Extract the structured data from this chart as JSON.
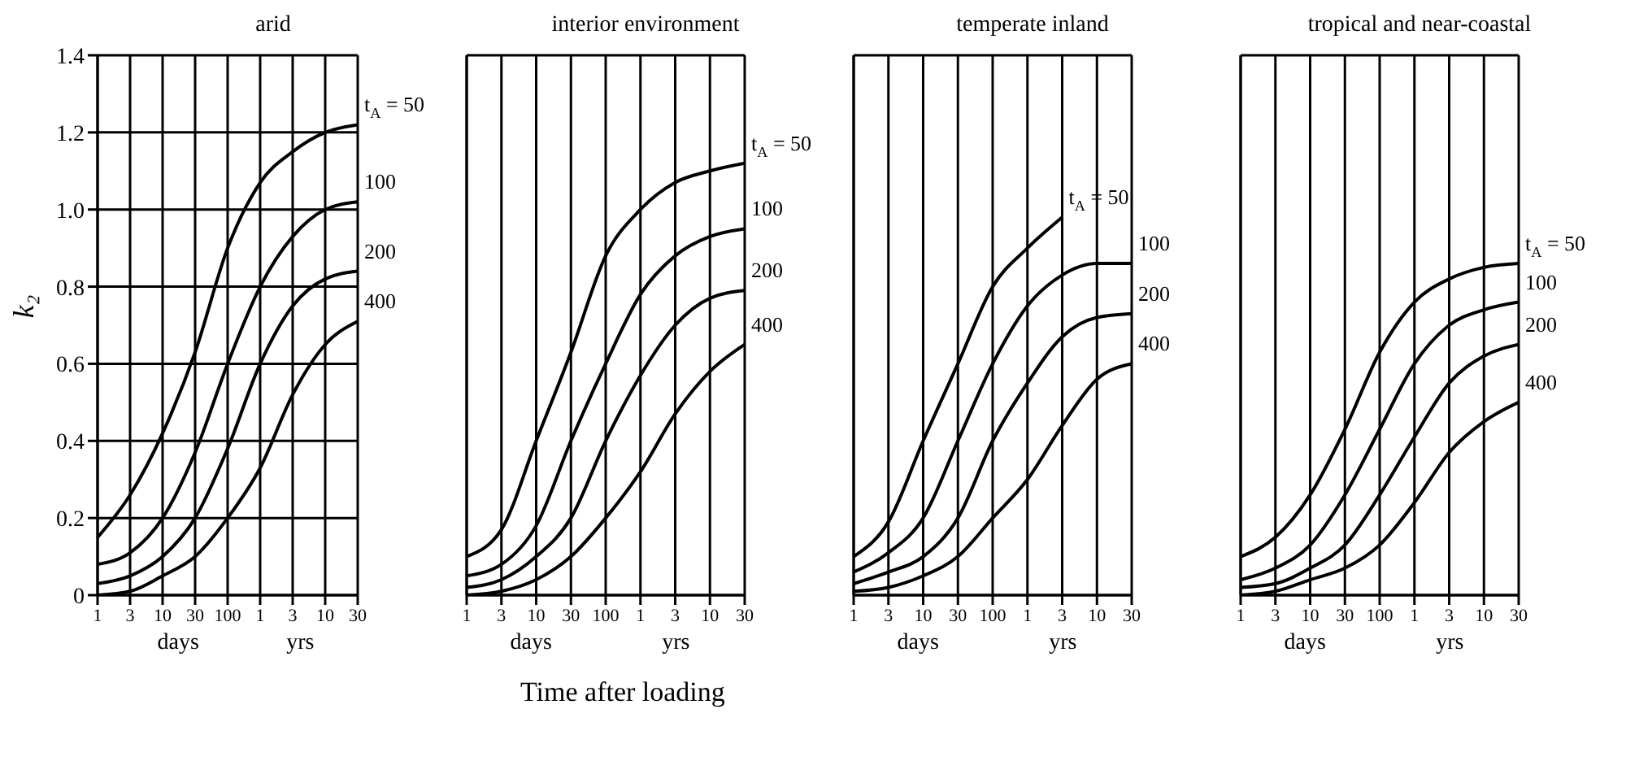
{
  "chart_data": [
    {
      "type": "line",
      "title": "arid",
      "ylabel": "k₂",
      "annotations": [
        "days",
        "yrs"
      ],
      "categories": [
        "1",
        "3",
        "10",
        "30",
        "100",
        "1",
        "3",
        "10",
        "30"
      ],
      "ylim": [
        0,
        1.4
      ],
      "yticks": [
        0,
        0.2,
        0.4,
        0.6,
        0.8,
        {
          "value": 1,
          "label": "1.0"
        },
        1.2,
        1.4
      ],
      "grid": true,
      "legend": false,
      "marker": "none",
      "line_style": "solid",
      "series": [
        {
          "name": "t$_{A}$ = 50",
          "color": "#000000",
          "values": [
            0.15,
            0.26,
            0.42,
            0.63,
            0.9,
            1.07,
            1.15,
            1.2,
            1.22
          ]
        },
        {
          "name": "100",
          "color": "#000000",
          "values": [
            0.08,
            0.11,
            0.2,
            0.37,
            0.6,
            0.8,
            0.93,
            1.0,
            1.02
          ]
        },
        {
          "name": "200",
          "color": "#000000",
          "values": [
            0.03,
            0.05,
            0.1,
            0.2,
            0.38,
            0.6,
            0.75,
            0.82,
            0.84
          ]
        },
        {
          "name": "400",
          "color": "#000000",
          "values": [
            0.0,
            0.01,
            0.05,
            0.1,
            0.2,
            0.33,
            0.52,
            0.65,
            0.71
          ]
        }
      ]
    },
    {
      "type": "line",
      "title": "interior environment",
      "xlabel": "Time after loading",
      "annotations": [
        "days",
        "yrs"
      ],
      "categories": [
        "1",
        "3",
        "10",
        "30",
        "100",
        "1",
        "3",
        "10",
        "30"
      ],
      "ylim": [
        0,
        1.4
      ],
      "yticks": [
        0,
        0.2,
        0.4,
        0.6,
        0.8,
        1,
        1.2,
        1.4
      ],
      "tick_labels": "x",
      "grid": true,
      "legend": false,
      "marker": "none",
      "line_style": "solid",
      "series": [
        {
          "name": "t$_{A}$ = 50",
          "color": "#000000",
          "values": [
            0.1,
            0.17,
            0.4,
            0.63,
            0.88,
            1.0,
            1.07,
            1.1,
            1.12
          ]
        },
        {
          "name": "100",
          "color": "#000000",
          "values": [
            0.05,
            0.08,
            0.18,
            0.4,
            0.6,
            0.78,
            0.88,
            0.93,
            0.95
          ]
        },
        {
          "name": "200",
          "color": "#000000",
          "values": [
            0.02,
            0.04,
            0.1,
            0.2,
            0.4,
            0.57,
            0.7,
            0.77,
            0.79
          ]
        },
        {
          "name": "400",
          "color": "#000000",
          "values": [
            0.0,
            0.01,
            0.04,
            0.1,
            0.2,
            0.32,
            0.47,
            0.58,
            0.65
          ]
        }
      ]
    },
    {
      "type": "line",
      "title": "temperate inland",
      "annotations": [
        "days",
        "yrs"
      ],
      "categories": [
        "1",
        "3",
        "10",
        "30",
        "100",
        "1",
        "3",
        "10",
        "30"
      ],
      "ylim": [
        0,
        1.4
      ],
      "yticks": [
        0,
        0.2,
        0.4,
        0.6,
        0.8,
        1,
        1.2,
        1.4
      ],
      "tick_labels": "x",
      "grid": true,
      "legend": false,
      "marker": "none",
      "line_style": "solid",
      "series": [
        {
          "name": "t$_{A}$ = 50",
          "color": "#000000",
          "values": [
            0.1,
            0.19,
            0.4,
            0.6,
            0.8,
            0.9,
            0.98,
            null,
            null
          ]
        },
        {
          "name": "100",
          "color": "#000000",
          "values": [
            0.06,
            0.11,
            0.2,
            0.4,
            0.6,
            0.75,
            0.83,
            0.86,
            0.86
          ]
        },
        {
          "name": "200",
          "color": "#000000",
          "values": [
            0.03,
            0.06,
            0.1,
            0.2,
            0.4,
            0.55,
            0.67,
            0.72,
            0.73
          ]
        },
        {
          "name": "400",
          "color": "#000000",
          "values": [
            0.01,
            0.02,
            0.05,
            0.1,
            0.2,
            0.3,
            0.44,
            0.56,
            0.6
          ]
        }
      ]
    },
    {
      "type": "line",
      "title": "tropical and near-coastal",
      "annotations": [
        "days",
        "yrs"
      ],
      "categories": [
        "1",
        "3",
        "10",
        "30",
        "100",
        "1",
        "3",
        "10",
        "30"
      ],
      "ylim": [
        0,
        1.4
      ],
      "yticks": [
        0,
        0.2,
        0.4,
        0.6,
        0.8,
        1,
        1.2,
        1.4
      ],
      "tick_labels": "x",
      "grid": true,
      "legend": false,
      "marker": "none",
      "line_style": "solid",
      "series": [
        {
          "name": "t$_{A}$ = 50",
          "color": "#000000",
          "values": [
            0.1,
            0.15,
            0.26,
            0.43,
            0.63,
            0.76,
            0.82,
            0.85,
            0.86
          ]
        },
        {
          "name": "100",
          "color": "#000000",
          "values": [
            0.04,
            0.07,
            0.13,
            0.26,
            0.43,
            0.6,
            0.7,
            0.74,
            0.76
          ]
        },
        {
          "name": "200",
          "color": "#000000",
          "values": [
            0.02,
            0.03,
            0.07,
            0.13,
            0.26,
            0.41,
            0.55,
            0.62,
            0.65
          ]
        },
        {
          "name": "400",
          "color": "#000000",
          "values": [
            0.0,
            0.01,
            0.04,
            0.07,
            0.13,
            0.24,
            0.37,
            0.45,
            0.5
          ]
        }
      ]
    }
  ]
}
